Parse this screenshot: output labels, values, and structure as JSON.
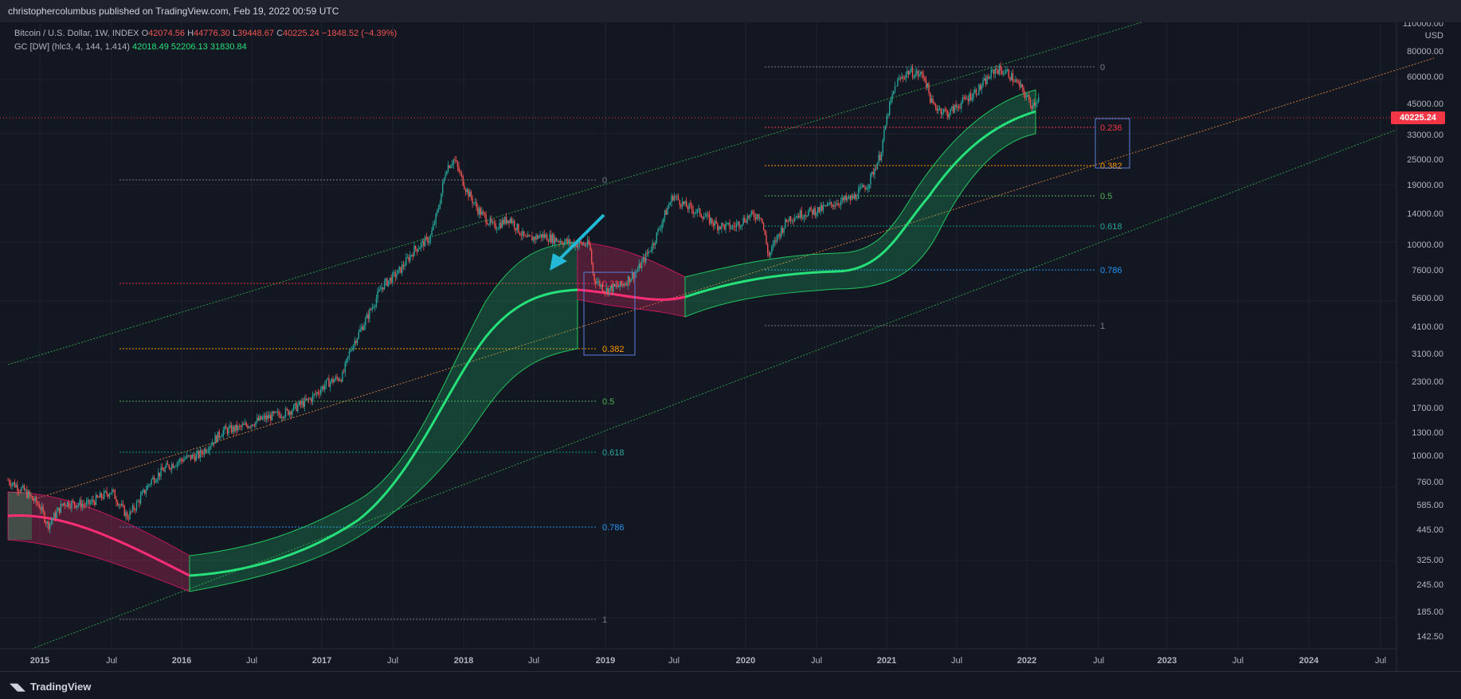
{
  "header": {
    "published": "christophercolumbus published on TradingView.com, Feb 19, 2022 00:59 UTC"
  },
  "legend": {
    "symbol": "Bitcoin / U.S. Dollar, 1W, INDEX",
    "open_label": "O",
    "open": "42074.56",
    "high_label": "H",
    "high": "44776.30",
    "low_label": "L",
    "low": "39448.67",
    "close_label": "C",
    "close": "40225.24",
    "change": "−1848.52 (−4.39%)",
    "indicator": "GC [DW] (hlc3, 4, 144, 1.414)",
    "ind_v1": "42018.49",
    "ind_v2": "52206.13",
    "ind_v3": "31830.84"
  },
  "price_axis": {
    "top_label": "110000.00",
    "unit": "USD",
    "current_price": "40225.24",
    "ticks": [
      "80000.00",
      "60000.00",
      "45000.00",
      "33000.00",
      "25000.00",
      "19000.00",
      "14000.00",
      "10000.00",
      "7600.00",
      "5600.00",
      "4100.00",
      "3100.00",
      "2300.00",
      "1700.00",
      "1300.00",
      "1000.00",
      "760.00",
      "585.00",
      "445.00",
      "325.00",
      "245.00",
      "185.00",
      "142.50"
    ]
  },
  "time_axis": {
    "labels": [
      "2015",
      "Jul",
      "2016",
      "Jul",
      "2017",
      "Jul",
      "2018",
      "Jul",
      "2019",
      "Jul",
      "2020",
      "Jul",
      "2021",
      "Jul",
      "2022",
      "Jul",
      "2023",
      "Jul",
      "2024",
      "Jul"
    ]
  },
  "fib_2018": {
    "levels": [
      "0",
      "0.236",
      "0.382",
      "0.5",
      "0.618",
      "0.786",
      "1"
    ]
  },
  "fib_2021": {
    "levels": [
      "0",
      "0.236",
      "0.382",
      "0.5",
      "0.618",
      "0.786",
      "1"
    ]
  },
  "footer": {
    "brand": "TradingView"
  },
  "colors": {
    "background": "#131722",
    "up": "#26a69a",
    "down": "#ef5350",
    "band_green": "#26e07a",
    "band_red": "#ff2e74",
    "fib_0": "#787b86",
    "fib_236": "#f23645",
    "fib_382": "#ff9800",
    "fib_5": "#4caf50",
    "fib_618": "#089981",
    "fib_786": "#2196f3",
    "arrow": "#22b8d6"
  }
}
